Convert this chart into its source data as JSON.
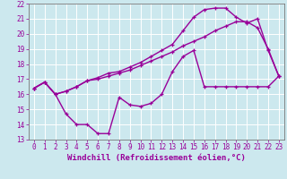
{
  "background_color": "#cce8ee",
  "grid_color": "#ffffff",
  "line_color": "#990099",
  "xlabel": "Windchill (Refroidissement éolien,°C)",
  "xlim": [
    -0.5,
    23.5
  ],
  "ylim": [
    13,
    22
  ],
  "xticks": [
    0,
    1,
    2,
    3,
    4,
    5,
    6,
    7,
    8,
    9,
    10,
    11,
    12,
    13,
    14,
    15,
    16,
    17,
    18,
    19,
    20,
    21,
    22,
    23
  ],
  "yticks": [
    13,
    14,
    15,
    16,
    17,
    18,
    19,
    20,
    21,
    22
  ],
  "line1_x": [
    0,
    1,
    2,
    3,
    4,
    5,
    6,
    7,
    8,
    9,
    10,
    11,
    12,
    13,
    14,
    15,
    16,
    17,
    18,
    19,
    20,
    21,
    22,
    23
  ],
  "line1_y": [
    16.4,
    16.8,
    16.0,
    14.7,
    14.0,
    14.0,
    13.4,
    13.4,
    15.8,
    15.3,
    15.2,
    15.4,
    16.0,
    17.5,
    18.5,
    18.9,
    16.5,
    16.5,
    16.5,
    16.5,
    16.5,
    16.5,
    16.5,
    17.2
  ],
  "line2_x": [
    0,
    1,
    2,
    3,
    4,
    5,
    6,
    7,
    8,
    9,
    10,
    11,
    12,
    13,
    14,
    15,
    16,
    17,
    18,
    19,
    20,
    21,
    22,
    23
  ],
  "line2_y": [
    16.4,
    16.8,
    16.0,
    16.2,
    16.5,
    16.9,
    17.0,
    17.2,
    17.4,
    17.6,
    17.9,
    18.2,
    18.5,
    18.8,
    19.2,
    19.5,
    19.8,
    20.2,
    20.5,
    20.8,
    20.8,
    20.4,
    19.0,
    17.2
  ],
  "line3_x": [
    0,
    1,
    2,
    3,
    4,
    5,
    6,
    7,
    8,
    9,
    10,
    11,
    12,
    13,
    14,
    15,
    16,
    17,
    18,
    19,
    20,
    21,
    22,
    23
  ],
  "line3_y": [
    16.4,
    16.8,
    16.0,
    16.2,
    16.5,
    16.9,
    17.1,
    17.4,
    17.5,
    17.8,
    18.1,
    18.5,
    18.9,
    19.3,
    20.2,
    21.1,
    21.6,
    21.7,
    21.7,
    21.1,
    20.7,
    21.0,
    18.9,
    17.2
  ],
  "marker": "+",
  "markersize": 3,
  "linewidth": 1.0,
  "xlabel_fontsize": 6.5,
  "tick_fontsize": 5.5
}
